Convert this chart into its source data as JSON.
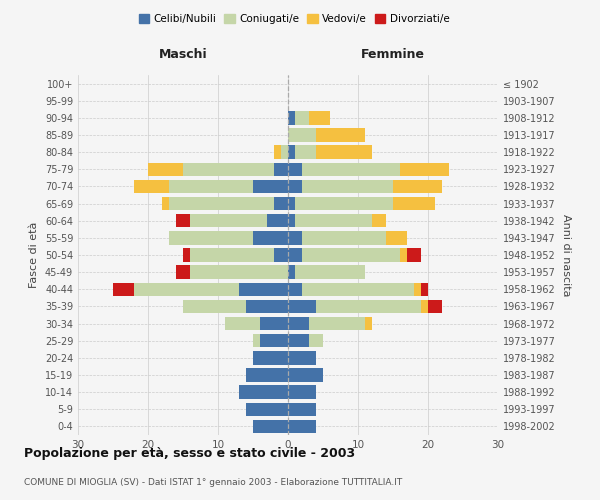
{
  "age_groups": [
    "0-4",
    "5-9",
    "10-14",
    "15-19",
    "20-24",
    "25-29",
    "30-34",
    "35-39",
    "40-44",
    "45-49",
    "50-54",
    "55-59",
    "60-64",
    "65-69",
    "70-74",
    "75-79",
    "80-84",
    "85-89",
    "90-94",
    "95-99",
    "100+"
  ],
  "birth_years": [
    "1998-2002",
    "1993-1997",
    "1988-1992",
    "1983-1987",
    "1978-1982",
    "1973-1977",
    "1968-1972",
    "1963-1967",
    "1958-1962",
    "1953-1957",
    "1948-1952",
    "1943-1947",
    "1938-1942",
    "1933-1937",
    "1928-1932",
    "1923-1927",
    "1918-1922",
    "1913-1917",
    "1908-1912",
    "1903-1907",
    "≤ 1902"
  ],
  "males": {
    "celibe": [
      5,
      6,
      7,
      6,
      5,
      4,
      4,
      6,
      7,
      0,
      2,
      5,
      3,
      2,
      5,
      2,
      0,
      0,
      0,
      0,
      0
    ],
    "coniugato": [
      0,
      0,
      0,
      0,
      0,
      1,
      5,
      9,
      15,
      14,
      12,
      12,
      11,
      15,
      12,
      13,
      1,
      0,
      0,
      0,
      0
    ],
    "vedovo": [
      0,
      0,
      0,
      0,
      0,
      0,
      0,
      0,
      0,
      0,
      0,
      0,
      0,
      1,
      5,
      5,
      1,
      0,
      0,
      0,
      0
    ],
    "divorziato": [
      0,
      0,
      0,
      0,
      0,
      0,
      0,
      0,
      3,
      2,
      1,
      0,
      2,
      0,
      0,
      0,
      0,
      0,
      0,
      0,
      0
    ]
  },
  "females": {
    "nubile": [
      4,
      4,
      4,
      5,
      4,
      3,
      3,
      4,
      2,
      1,
      2,
      2,
      1,
      1,
      2,
      2,
      1,
      0,
      1,
      0,
      0
    ],
    "coniugata": [
      0,
      0,
      0,
      0,
      0,
      2,
      8,
      15,
      16,
      10,
      14,
      12,
      11,
      14,
      13,
      14,
      3,
      4,
      2,
      0,
      0
    ],
    "vedova": [
      0,
      0,
      0,
      0,
      0,
      0,
      1,
      1,
      1,
      0,
      1,
      3,
      2,
      6,
      7,
      7,
      8,
      7,
      3,
      0,
      0
    ],
    "divorziata": [
      0,
      0,
      0,
      0,
      0,
      0,
      0,
      2,
      1,
      0,
      2,
      0,
      0,
      0,
      0,
      0,
      0,
      0,
      0,
      0,
      0
    ]
  },
  "colors": {
    "celibe": "#4472a8",
    "coniugato": "#c5d6a8",
    "vedovo": "#f5c040",
    "divorziato": "#cc1a1a"
  },
  "xlim": 30,
  "title": "Popolazione per età, sesso e stato civile - 2003",
  "subtitle": "COMUNE DI MIOGLIA (SV) - Dati ISTAT 1° gennaio 2003 - Elaborazione TUTTITALIA.IT",
  "ylabel_left": "Fasce di età",
  "ylabel_right": "Anni di nascita",
  "xlabel_left": "Maschi",
  "xlabel_right": "Femmine",
  "bg_color": "#f5f5f5",
  "legend_labels": [
    "Celibi/Nubili",
    "Coniugati/e",
    "Vedovi/e",
    "Divorziati/e"
  ]
}
